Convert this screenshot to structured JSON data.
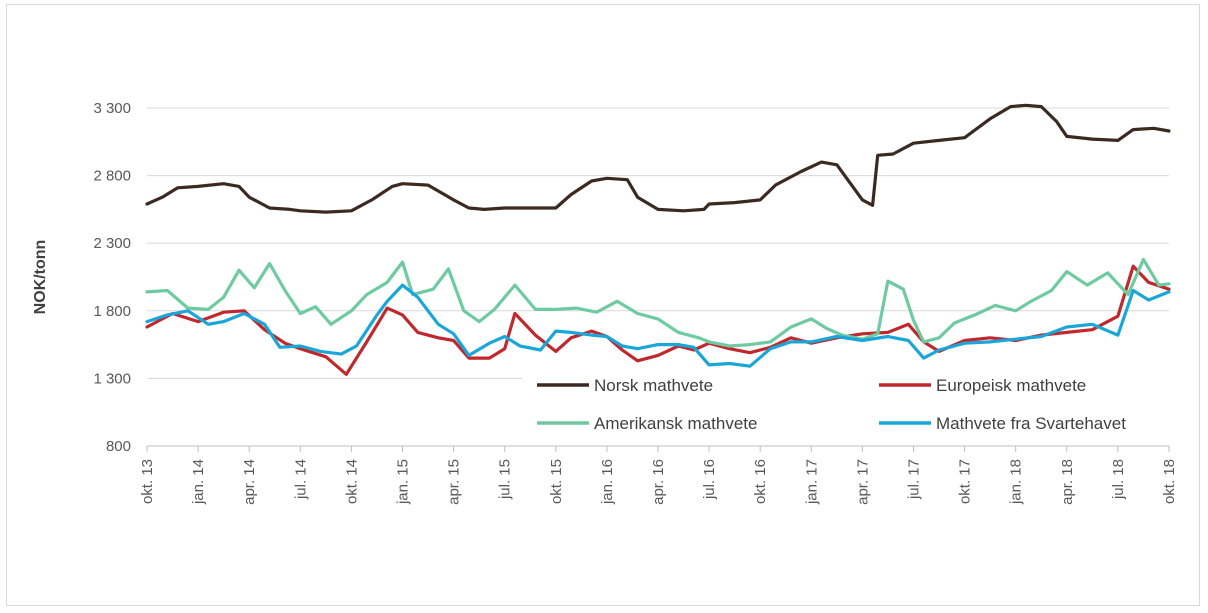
{
  "chart_data": {
    "type": "line",
    "title": "",
    "xlabel": "",
    "ylabel": "NOK/tonn",
    "ylim": [
      800,
      3300
    ],
    "yticks": [
      800,
      1300,
      1800,
      2300,
      2800,
      3300
    ],
    "ytick_labels": [
      "800",
      "1 300",
      "1 800",
      "2 300",
      "2 800",
      "3 300"
    ],
    "x_tick_labels": [
      "okt. 13",
      "jan. 14",
      "apr. 14",
      "jul. 14",
      "okt. 14",
      "jan. 15",
      "apr. 15",
      "jul. 15",
      "okt. 15",
      "jan. 16",
      "apr. 16",
      "jul. 16",
      "okt. 16",
      "jan. 17",
      "apr. 17",
      "jul. 17",
      "okt. 17",
      "jan. 18",
      "apr. 18",
      "jul. 18",
      "okt. 18"
    ],
    "grid": true,
    "legend_position": "bottom-right",
    "series": [
      {
        "name": "Norsk mathvete",
        "color": "#3b2a22",
        "points": [
          [
            0,
            2590
          ],
          [
            0.3,
            2640
          ],
          [
            0.6,
            2710
          ],
          [
            1,
            2720
          ],
          [
            1.5,
            2740
          ],
          [
            1.8,
            2720
          ],
          [
            2,
            2640
          ],
          [
            2.4,
            2560
          ],
          [
            2.8,
            2550
          ],
          [
            3,
            2540
          ],
          [
            3.5,
            2530
          ],
          [
            4,
            2540
          ],
          [
            4.4,
            2620
          ],
          [
            4.8,
            2720
          ],
          [
            5,
            2740
          ],
          [
            5.5,
            2730
          ],
          [
            6,
            2620
          ],
          [
            6.3,
            2560
          ],
          [
            6.6,
            2550
          ],
          [
            7,
            2560
          ],
          [
            7.5,
            2560
          ],
          [
            8,
            2560
          ],
          [
            8.3,
            2660
          ],
          [
            8.7,
            2760
          ],
          [
            9,
            2780
          ],
          [
            9.4,
            2770
          ],
          [
            9.6,
            2640
          ],
          [
            10,
            2550
          ],
          [
            10.5,
            2540
          ],
          [
            10.9,
            2550
          ],
          [
            11,
            2590
          ],
          [
            11.5,
            2600
          ],
          [
            12,
            2620
          ],
          [
            12.3,
            2730
          ],
          [
            12.8,
            2830
          ],
          [
            13.2,
            2900
          ],
          [
            13.5,
            2880
          ],
          [
            14,
            2620
          ],
          [
            14.2,
            2580
          ],
          [
            14.3,
            2950
          ],
          [
            14.6,
            2960
          ],
          [
            15,
            3040
          ],
          [
            15.5,
            3060
          ],
          [
            16,
            3080
          ],
          [
            16.5,
            3220
          ],
          [
            16.9,
            3310
          ],
          [
            17.2,
            3320
          ],
          [
            17.5,
            3310
          ],
          [
            17.8,
            3200
          ],
          [
            18,
            3090
          ],
          [
            18.5,
            3070
          ],
          [
            19,
            3060
          ],
          [
            19.3,
            3140
          ],
          [
            19.7,
            3150
          ],
          [
            20,
            3130
          ]
        ]
      },
      {
        "name": "Europeisk mathvete",
        "color": "#c0282d",
        "points": [
          [
            0,
            1680
          ],
          [
            0.5,
            1780
          ],
          [
            1,
            1720
          ],
          [
            1.5,
            1790
          ],
          [
            1.9,
            1800
          ],
          [
            2.3,
            1660
          ],
          [
            2.7,
            1560
          ],
          [
            3,
            1520
          ],
          [
            3.5,
            1460
          ],
          [
            3.9,
            1330
          ],
          [
            4.3,
            1570
          ],
          [
            4.7,
            1820
          ],
          [
            5,
            1770
          ],
          [
            5.3,
            1640
          ],
          [
            5.7,
            1600
          ],
          [
            6,
            1580
          ],
          [
            6.3,
            1450
          ],
          [
            6.7,
            1450
          ],
          [
            7,
            1520
          ],
          [
            7.2,
            1780
          ],
          [
            7.6,
            1620
          ],
          [
            8,
            1500
          ],
          [
            8.3,
            1600
          ],
          [
            8.7,
            1650
          ],
          [
            9,
            1610
          ],
          [
            9.3,
            1510
          ],
          [
            9.6,
            1430
          ],
          [
            10,
            1470
          ],
          [
            10.4,
            1540
          ],
          [
            10.7,
            1510
          ],
          [
            11,
            1560
          ],
          [
            11.4,
            1520
          ],
          [
            11.8,
            1490
          ],
          [
            12.2,
            1530
          ],
          [
            12.6,
            1600
          ],
          [
            13,
            1560
          ],
          [
            13.5,
            1600
          ],
          [
            14,
            1630
          ],
          [
            14.5,
            1640
          ],
          [
            14.9,
            1700
          ],
          [
            15.2,
            1570
          ],
          [
            15.5,
            1500
          ],
          [
            16,
            1580
          ],
          [
            16.5,
            1600
          ],
          [
            17,
            1580
          ],
          [
            17.5,
            1620
          ],
          [
            18,
            1640
          ],
          [
            18.5,
            1660
          ],
          [
            19,
            1760
          ],
          [
            19.3,
            2130
          ],
          [
            19.6,
            2010
          ],
          [
            20,
            1960
          ]
        ]
      },
      {
        "name": "Amerikansk mathvete",
        "color": "#6ecba1",
        "points": [
          [
            0,
            1940
          ],
          [
            0.4,
            1950
          ],
          [
            0.8,
            1820
          ],
          [
            1.2,
            1810
          ],
          [
            1.5,
            1900
          ],
          [
            1.8,
            2100
          ],
          [
            2.1,
            1970
          ],
          [
            2.4,
            2150
          ],
          [
            2.7,
            1950
          ],
          [
            3,
            1780
          ],
          [
            3.3,
            1830
          ],
          [
            3.6,
            1700
          ],
          [
            4,
            1800
          ],
          [
            4.3,
            1920
          ],
          [
            4.7,
            2010
          ],
          [
            5,
            2160
          ],
          [
            5.2,
            1920
          ],
          [
            5.6,
            1960
          ],
          [
            5.9,
            2110
          ],
          [
            6.2,
            1800
          ],
          [
            6.5,
            1720
          ],
          [
            6.8,
            1810
          ],
          [
            7.2,
            1990
          ],
          [
            7.6,
            1810
          ],
          [
            8,
            1810
          ],
          [
            8.4,
            1820
          ],
          [
            8.8,
            1790
          ],
          [
            9.2,
            1870
          ],
          [
            9.6,
            1780
          ],
          [
            10,
            1740
          ],
          [
            10.4,
            1640
          ],
          [
            10.8,
            1600
          ],
          [
            11,
            1570
          ],
          [
            11.4,
            1540
          ],
          [
            11.8,
            1550
          ],
          [
            12.2,
            1570
          ],
          [
            12.6,
            1680
          ],
          [
            13,
            1740
          ],
          [
            13.3,
            1670
          ],
          [
            13.6,
            1620
          ],
          [
            14,
            1590
          ],
          [
            14.3,
            1630
          ],
          [
            14.5,
            2020
          ],
          [
            14.8,
            1960
          ],
          [
            15,
            1730
          ],
          [
            15.2,
            1570
          ],
          [
            15.5,
            1600
          ],
          [
            15.8,
            1710
          ],
          [
            16.2,
            1770
          ],
          [
            16.6,
            1840
          ],
          [
            17,
            1800
          ],
          [
            17.3,
            1870
          ],
          [
            17.7,
            1950
          ],
          [
            18,
            2090
          ],
          [
            18.4,
            1990
          ],
          [
            18.8,
            2080
          ],
          [
            19.2,
            1920
          ],
          [
            19.5,
            2180
          ],
          [
            19.8,
            1990
          ],
          [
            20,
            2000
          ]
        ]
      },
      {
        "name": "Mathvete fra Svartehavet",
        "color": "#1aa6d8",
        "points": [
          [
            0,
            1720
          ],
          [
            0.4,
            1770
          ],
          [
            0.8,
            1800
          ],
          [
            1.2,
            1700
          ],
          [
            1.5,
            1720
          ],
          [
            1.9,
            1780
          ],
          [
            2.3,
            1700
          ],
          [
            2.6,
            1530
          ],
          [
            3,
            1540
          ],
          [
            3.4,
            1500
          ],
          [
            3.8,
            1480
          ],
          [
            4.1,
            1540
          ],
          [
            4.5,
            1770
          ],
          [
            4.7,
            1870
          ],
          [
            5,
            1990
          ],
          [
            5.3,
            1900
          ],
          [
            5.7,
            1700
          ],
          [
            6,
            1630
          ],
          [
            6.3,
            1470
          ],
          [
            6.7,
            1560
          ],
          [
            7,
            1610
          ],
          [
            7.3,
            1540
          ],
          [
            7.7,
            1510
          ],
          [
            8,
            1650
          ],
          [
            8.3,
            1640
          ],
          [
            8.7,
            1620
          ],
          [
            9,
            1610
          ],
          [
            9.3,
            1540
          ],
          [
            9.6,
            1520
          ],
          [
            10,
            1550
          ],
          [
            10.4,
            1550
          ],
          [
            10.7,
            1530
          ],
          [
            11,
            1400
          ],
          [
            11.4,
            1410
          ],
          [
            11.8,
            1390
          ],
          [
            12.2,
            1520
          ],
          [
            12.6,
            1570
          ],
          [
            13,
            1570
          ],
          [
            13.5,
            1610
          ],
          [
            14,
            1580
          ],
          [
            14.5,
            1610
          ],
          [
            14.9,
            1580
          ],
          [
            15.2,
            1450
          ],
          [
            15.5,
            1510
          ],
          [
            16,
            1560
          ],
          [
            16.5,
            1570
          ],
          [
            17,
            1590
          ],
          [
            17.5,
            1610
          ],
          [
            18,
            1680
          ],
          [
            18.5,
            1700
          ],
          [
            19,
            1620
          ],
          [
            19.3,
            1950
          ],
          [
            19.6,
            1880
          ],
          [
            20,
            1940
          ]
        ]
      }
    ]
  }
}
